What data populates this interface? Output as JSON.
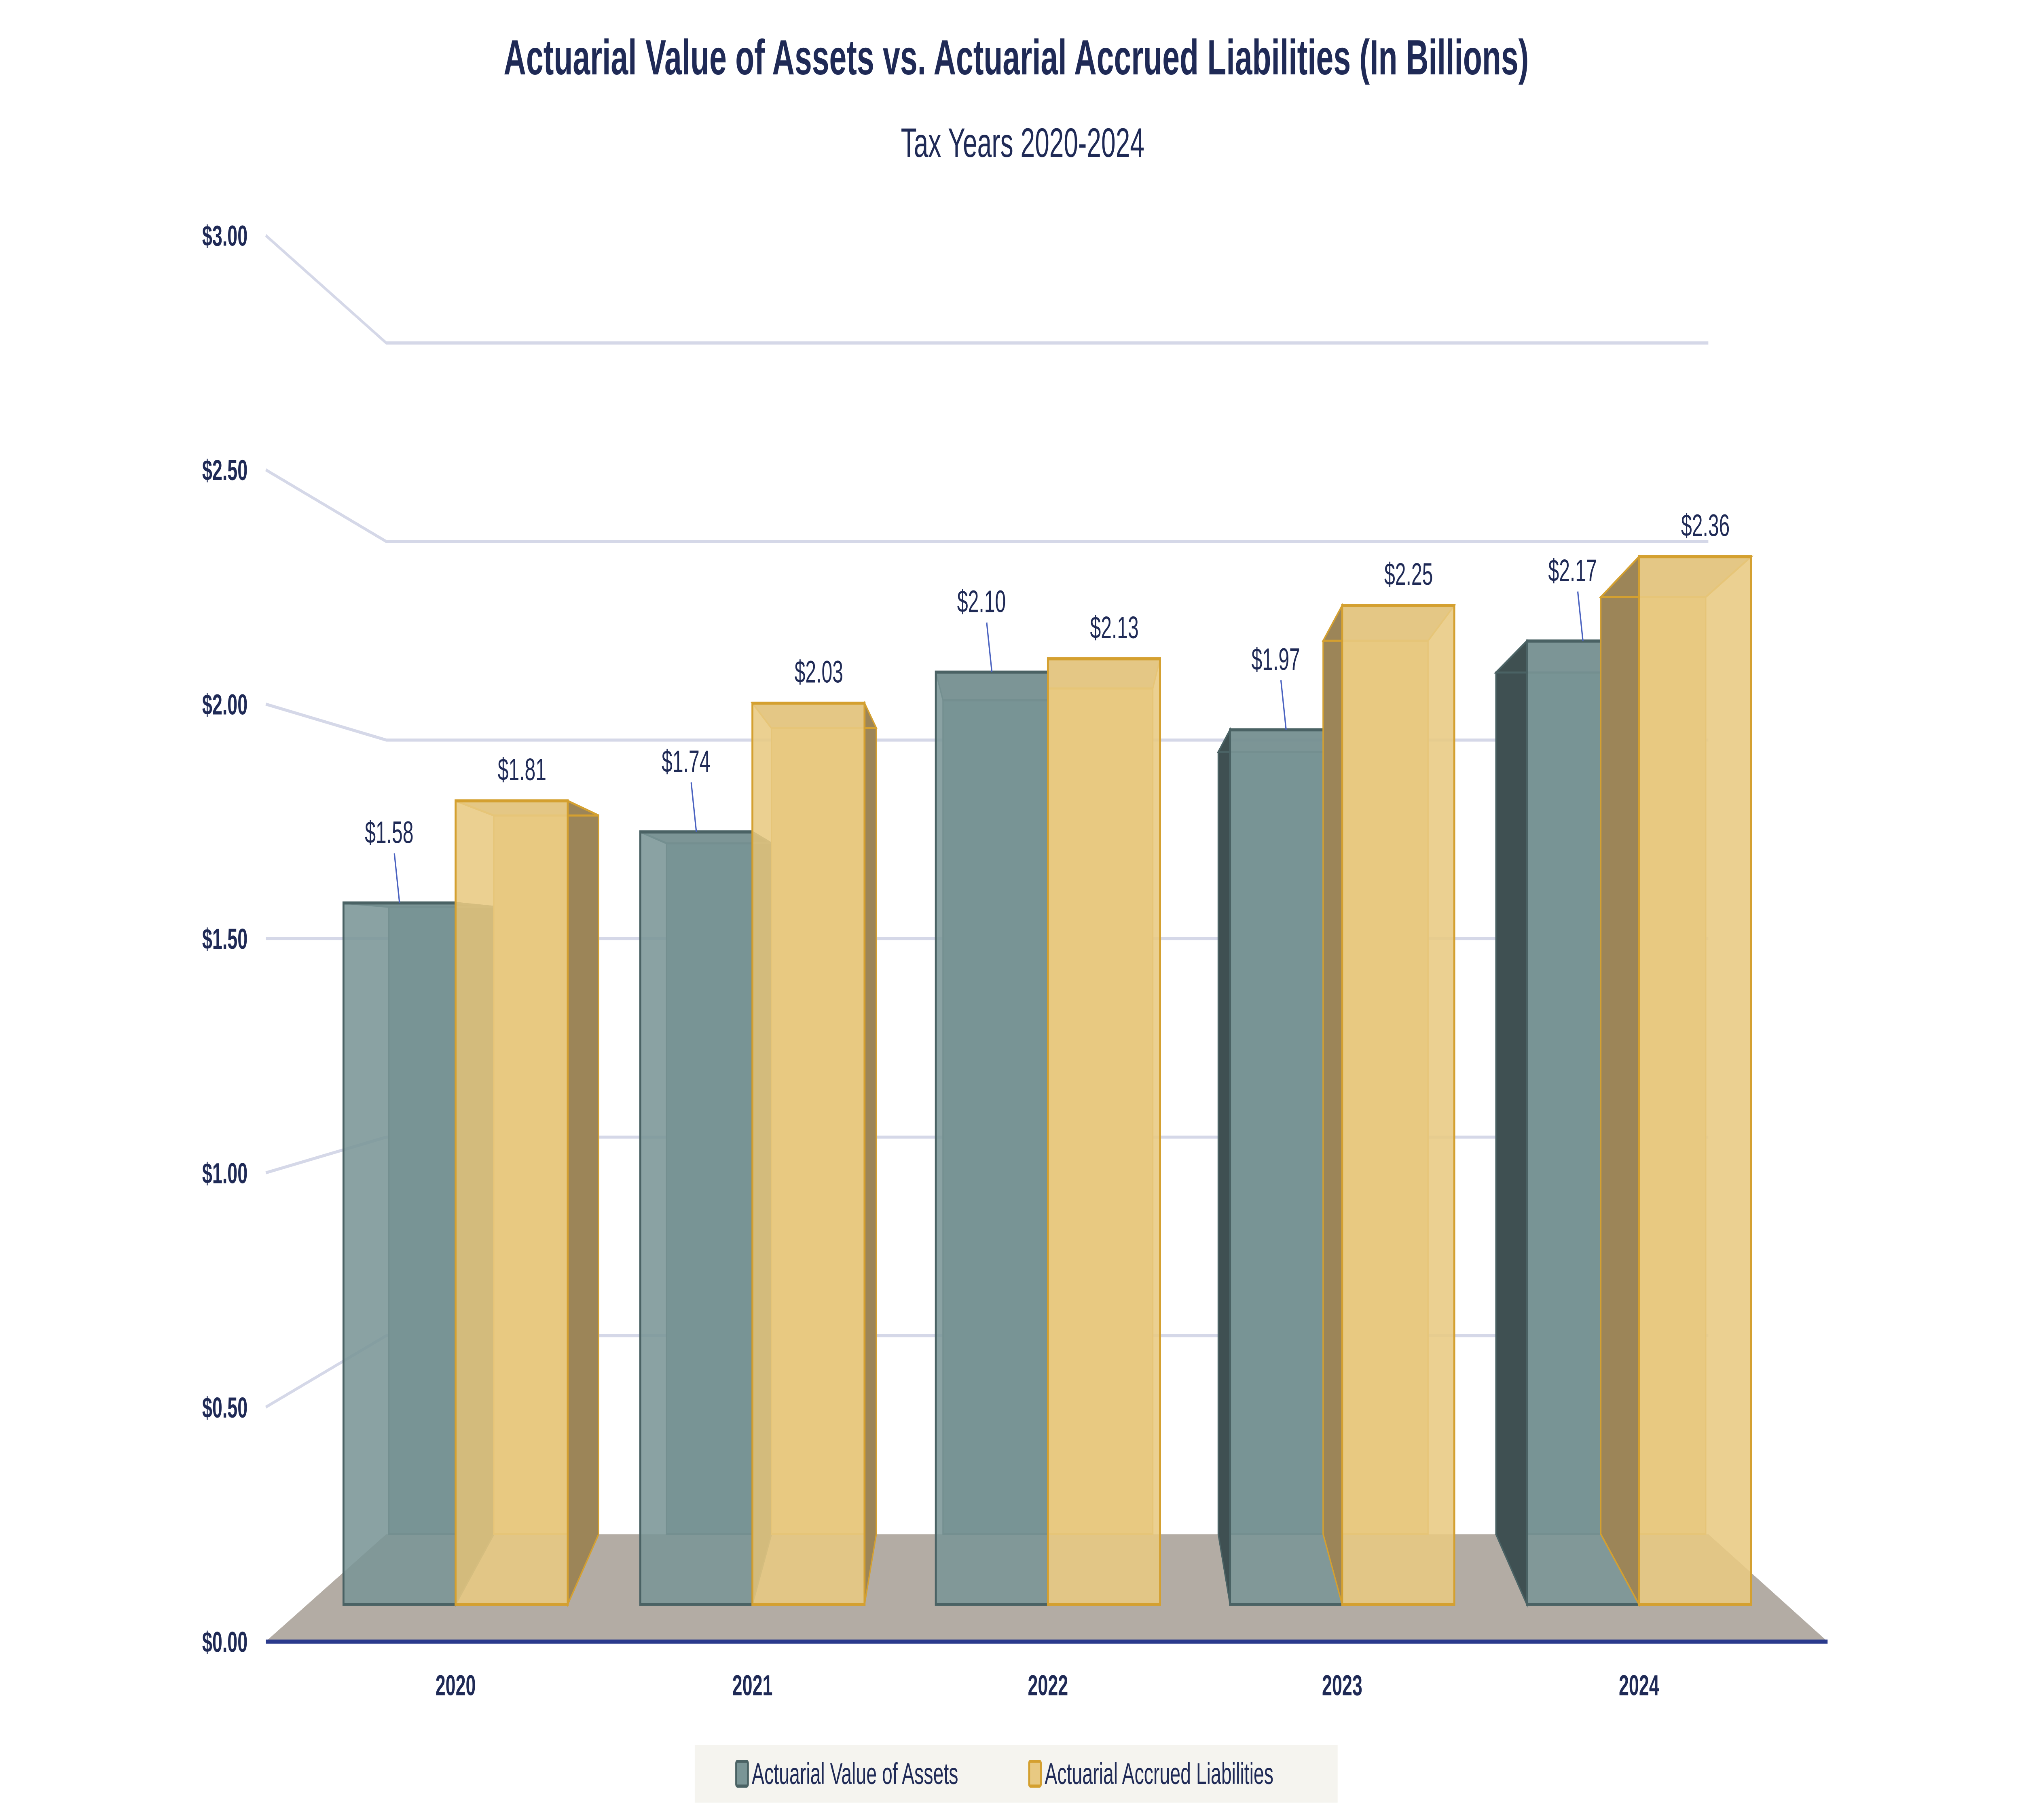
{
  "chart_data": {
    "type": "bar",
    "title": "Actuarial Value of Assets vs. Actuarial Accrued Liabilities (In Billions)",
    "subtitle": "Tax Years 2020-2024",
    "categories": [
      "2020",
      "2021",
      "2022",
      "2023",
      "2024"
    ],
    "series": [
      {
        "name": "Actuarial Value of Assets",
        "values": [
          1.58,
          1.74,
          2.1,
          1.97,
          2.17
        ],
        "labels": [
          "$1.58",
          "$1.74",
          "$2.10",
          "$1.97",
          "$2.17"
        ],
        "color": "#7a9596"
      },
      {
        "name": "Actuarial Accrued Liabilities",
        "values": [
          1.81,
          2.03,
          2.13,
          2.25,
          2.36
        ],
        "labels": [
          "$1.81",
          "$2.03",
          "$2.13",
          "$2.25",
          "$2.36"
        ],
        "color": "#e8c982"
      }
    ],
    "yticks": [
      0,
      0.5,
      1.0,
      1.5,
      2.0,
      2.5,
      3.0
    ],
    "ytick_labels": [
      "$0.00",
      "$0.50",
      "$1.00",
      "$1.50",
      "$2.00",
      "$2.50",
      "$3.00"
    ],
    "ylim": [
      0,
      3.0
    ],
    "xlabel": "",
    "ylabel": "",
    "grid": true,
    "style": "3d",
    "legend_position": "bottom"
  },
  "colors": {
    "title": "#1f2a56",
    "axis": "#2a3a8c",
    "grid": "#d5d8e8",
    "floor": "#b3aca4",
    "assets_side": "#3f5052",
    "assets_stroke": "#4a6264",
    "liab_side": "#9c8558",
    "liab_stroke": "#d4a030",
    "legend_bg": "#f5f4ef"
  }
}
